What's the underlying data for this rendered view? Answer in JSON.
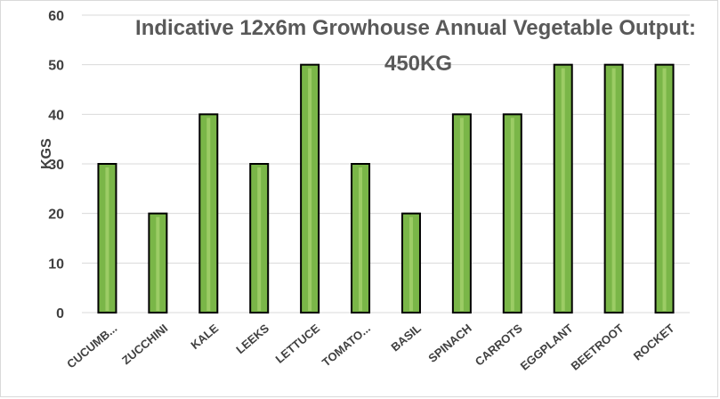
{
  "chart_data": {
    "type": "bar",
    "title_line1": "Indicative 12x6m Growhouse Annual Vegetable Output:",
    "title_line2": "450KG",
    "xlabel": "",
    "ylabel": "KGS",
    "ylim": [
      0,
      60
    ],
    "yticks": [
      0,
      10,
      20,
      30,
      40,
      50,
      60
    ],
    "grid": true,
    "legend": "none",
    "categories": [
      "CUCUMB...",
      "ZUCCHINI",
      "KALE",
      "LEEKS",
      "LETTUCE",
      "TOMATO...",
      "BASIL",
      "SPINACH",
      "CARROTS",
      "EGGPLANT",
      "BEETROOT",
      "ROCKET"
    ],
    "values": [
      30,
      20,
      40,
      30,
      50,
      30,
      20,
      40,
      40,
      50,
      50,
      50
    ],
    "colors": {
      "bar_fill": "#7ab648",
      "bar_highlight": "#9ccc65",
      "bar_outline": "#000000",
      "gridline": "#d9d9d9",
      "tick_text": "#404040"
    }
  }
}
